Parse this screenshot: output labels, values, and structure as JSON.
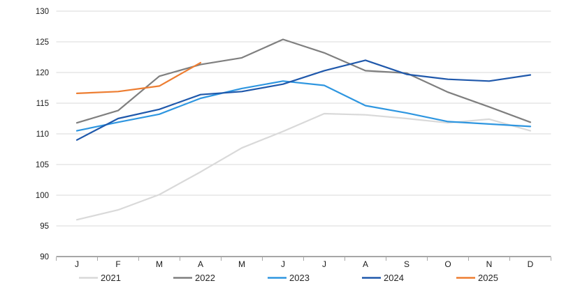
{
  "chart_data": {
    "type": "line",
    "title": "",
    "categories": [
      "J",
      "F",
      "M",
      "A",
      "M",
      "J",
      "J",
      "A",
      "S",
      "O",
      "N",
      "D"
    ],
    "series": [
      {
        "name": "2021",
        "color": "#d9d9d9",
        "values": [
          96.0,
          97.6,
          100.1,
          103.8,
          107.7,
          110.4,
          113.3,
          113.1,
          112.5,
          111.8,
          112.4,
          110.5
        ]
      },
      {
        "name": "2022",
        "color": "#7f7f7f",
        "values": [
          111.8,
          113.8,
          119.4,
          121.3,
          122.4,
          125.4,
          123.2,
          120.3,
          119.9,
          116.8,
          114.4,
          111.9
        ]
      },
      {
        "name": "2023",
        "color": "#2e96e0",
        "values": [
          110.5,
          111.9,
          113.2,
          115.8,
          117.4,
          118.6,
          117.9,
          114.6,
          113.4,
          112.0,
          111.6,
          111.2
        ]
      },
      {
        "name": "2024",
        "color": "#1f58ab",
        "values": [
          109.0,
          112.5,
          114.0,
          116.4,
          116.9,
          118.1,
          120.3,
          122.0,
          119.7,
          118.9,
          118.6,
          119.6
        ]
      },
      {
        "name": "2025",
        "color": "#ed7d31",
        "values": [
          116.6,
          116.9,
          117.8,
          121.6,
          null,
          null,
          null,
          null,
          null,
          null,
          null,
          null
        ]
      }
    ],
    "y_axis": {
      "min": 90,
      "max": 130,
      "step": 5,
      "tick_labels": [
        "90",
        "95",
        "100",
        "105",
        "110",
        "115",
        "120",
        "125",
        "130"
      ]
    },
    "x_axis": {
      "tick_labels": [
        "J",
        "F",
        "M",
        "A",
        "M",
        "J",
        "J",
        "A",
        "S",
        "O",
        "N",
        "D"
      ]
    },
    "legend": {
      "position": "bottom",
      "entries": [
        "2021",
        "2022",
        "2023",
        "2024",
        "2025"
      ]
    },
    "grid": "horizontal",
    "style_colors": {
      "gridline": "#d9d9d9",
      "axis_line": "#a6a6a6",
      "tick_label": "#1a1a1a",
      "legend_text": "#262626",
      "background": "#ffffff"
    }
  }
}
